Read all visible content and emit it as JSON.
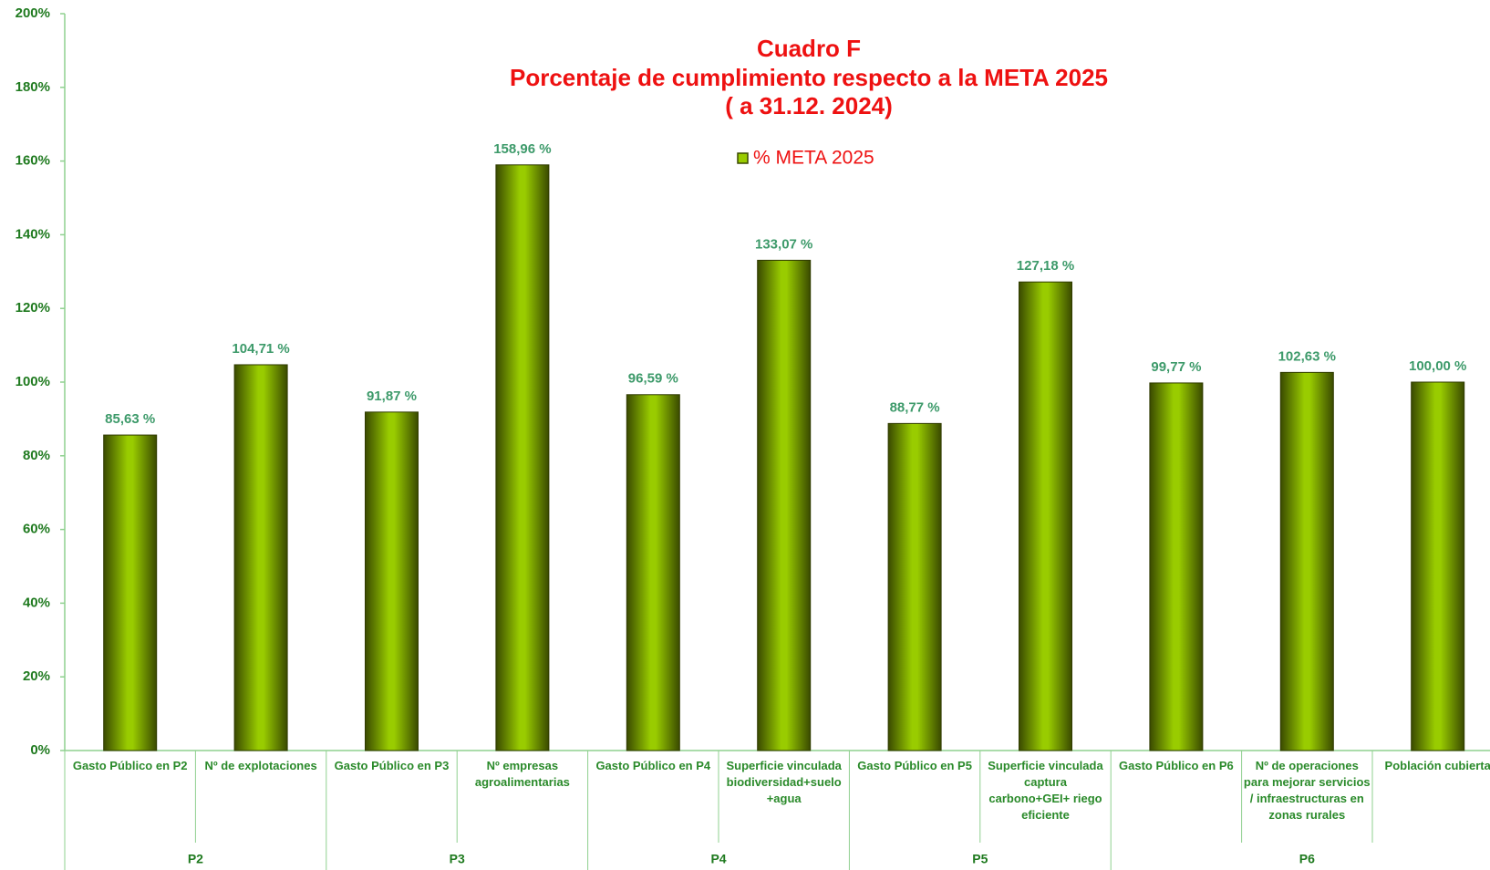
{
  "chart_data": {
    "type": "bar",
    "title": [
      "Cuadro F",
      "Porcentaje de cumplimiento  respecto a la META 2025",
      "( a 31.12. 2024)"
    ],
    "groups": [
      {
        "name": "P2",
        "categories": [
          "Gasto Público en P2",
          "Nº de explotaciones"
        ]
      },
      {
        "name": "P3",
        "categories": [
          "Gasto Público en P3",
          "Nº empresas agroalimentarias"
        ]
      },
      {
        "name": "P4",
        "categories": [
          "Gasto Público en P4",
          "Superficie vinculada biodiversidad+suelo +agua"
        ]
      },
      {
        "name": "P5",
        "categories": [
          "Gasto Público en P5",
          "Superficie vinculada captura carbono+GEI+ riego eficiente"
        ]
      },
      {
        "name": "P6",
        "categories": [
          "Gasto Público en P6",
          "Nº de operaciones para mejorar servicios / infraestructuras en zonas rurales",
          "Población cubierta"
        ]
      }
    ],
    "series": [
      {
        "name": "% META 2025",
        "color": "#99cc00",
        "values": [
          85.63,
          104.71,
          91.87,
          158.96,
          96.59,
          133.07,
          88.77,
          127.18,
          99.77,
          102.63,
          100.0
        ],
        "value_labels": [
          "85,63 %",
          "104,71 %",
          "91,87 %",
          "158,96 %",
          "96,59 %",
          "133,07 %",
          "88,77 %",
          "127,18 %",
          "99,77 %",
          "102,63 %",
          "100,00 %"
        ]
      }
    ],
    "ylim": [
      0,
      200
    ],
    "yticks": [
      {
        "value": 0,
        "label": "0%"
      },
      {
        "value": 20,
        "label": "20%"
      },
      {
        "value": 40,
        "label": "40%"
      },
      {
        "value": 60,
        "label": "60%"
      },
      {
        "value": 80,
        "label": "80%"
      },
      {
        "value": 100,
        "label": "100%"
      },
      {
        "value": 120,
        "label": "120%"
      },
      {
        "value": 140,
        "label": "140%"
      },
      {
        "value": 160,
        "label": "160%"
      },
      {
        "value": 180,
        "label": "180%"
      },
      {
        "value": 200,
        "label": "200%"
      }
    ],
    "legend": "top"
  }
}
